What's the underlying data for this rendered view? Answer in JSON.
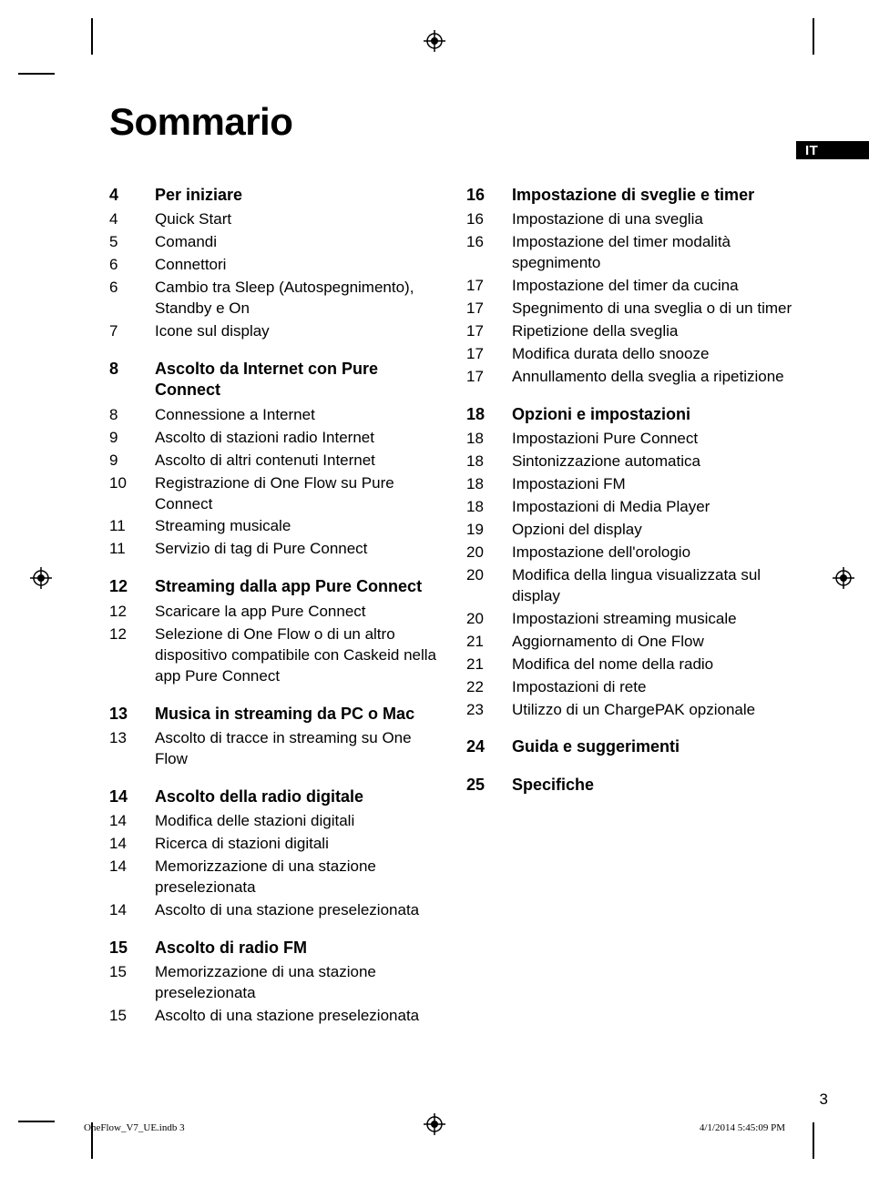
{
  "title": "Sommario",
  "lang_tab": "IT",
  "page_number": "3",
  "footer_left": "OneFlow_V7_UE.indb   3",
  "footer_right": "4/1/2014   5:45:09 PM",
  "columns": [
    {
      "sections": [
        {
          "page": "4",
          "title": "Per iniziare",
          "entries": [
            {
              "page": "4",
              "title": "Quick Start"
            },
            {
              "page": "5",
              "title": "Comandi"
            },
            {
              "page": "6",
              "title": "Connettori"
            },
            {
              "page": "6",
              "title": "Cambio tra Sleep (Autospegnimento), Standby e On"
            },
            {
              "page": "7",
              "title": "Icone sul display"
            }
          ]
        },
        {
          "page": "8",
          "title": "Ascolto da Internet con Pure Connect",
          "entries": [
            {
              "page": "8",
              "title": "Connessione a Internet"
            },
            {
              "page": "9",
              "title": "Ascolto di stazioni radio Internet"
            },
            {
              "page": "9",
              "title": "Ascolto di altri contenuti Internet"
            },
            {
              "page": "10",
              "title": "Registrazione di One Flow su Pure Connect"
            },
            {
              "page": "11",
              "title": "Streaming musicale"
            },
            {
              "page": "11",
              "title": "Servizio di tag di Pure Connect"
            }
          ]
        },
        {
          "page": "12",
          "title": "Streaming dalla app Pure Connect",
          "entries": [
            {
              "page": "12",
              "title": "Scaricare la app Pure Connect"
            },
            {
              "page": "12",
              "title": "Selezione di One Flow o di un altro dispositivo compatibile con Caskeid nella app Pure Connect"
            }
          ]
        },
        {
          "page": "13",
          "title": "Musica in streaming da PC o Mac",
          "entries": [
            {
              "page": "13",
              "title": "Ascolto di tracce in streaming su One Flow"
            }
          ]
        },
        {
          "page": "14",
          "title": "Ascolto della radio digitale",
          "entries": [
            {
              "page": "14",
              "title": "Modifica delle stazioni digitali"
            },
            {
              "page": "14",
              "title": "Ricerca di stazioni digitali"
            },
            {
              "page": "14",
              "title": "Memorizzazione di una stazione preselezionata"
            },
            {
              "page": "14",
              "title": "Ascolto di una stazione preselezionata"
            }
          ]
        },
        {
          "page": "15",
          "title": "Ascolto di radio FM",
          "entries": [
            {
              "page": "15",
              "title": "Memorizzazione di una stazione preselezionata"
            },
            {
              "page": "15",
              "title": "Ascolto di una stazione preselezionata"
            }
          ]
        }
      ]
    },
    {
      "sections": [
        {
          "page": "16",
          "title": "Impostazione di sveglie e timer",
          "entries": [
            {
              "page": "16",
              "title": "Impostazione di una sveglia"
            },
            {
              "page": "16",
              "title": "Impostazione del timer modalità spegnimento"
            },
            {
              "page": "17",
              "title": "Impostazione del timer da cucina"
            },
            {
              "page": "17",
              "title": "Spegnimento di una sveglia o di un timer"
            },
            {
              "page": "17",
              "title": "Ripetizione della sveglia"
            },
            {
              "page": "17",
              "title": "Modifica durata dello snooze"
            },
            {
              "page": "17",
              "title": "Annullamento della sveglia a ripetizione"
            }
          ]
        },
        {
          "page": "18",
          "title": "Opzioni e impostazioni",
          "entries": [
            {
              "page": "18",
              "title": "Impostazioni Pure Connect"
            },
            {
              "page": "18",
              "title": "Sintonizzazione automatica"
            },
            {
              "page": "18",
              "title": "Impostazioni FM"
            },
            {
              "page": "18",
              "title": "Impostazioni di Media Player"
            },
            {
              "page": "19",
              "title": "Opzioni del display"
            },
            {
              "page": "20",
              "title": "Impostazione dell'orologio"
            },
            {
              "page": "20",
              "title": "Modifica della lingua visualizzata sul display"
            },
            {
              "page": "20",
              "title": "Impostazioni streaming musicale"
            },
            {
              "page": "21",
              "title": "Aggiornamento di One Flow"
            },
            {
              "page": "21",
              "title": "Modifica del nome della radio"
            },
            {
              "page": "22",
              "title": "Impostazioni di rete"
            },
            {
              "page": "23",
              "title": "Utilizzo di un ChargePAK opzionale"
            }
          ]
        },
        {
          "page": "24",
          "title": "Guida e suggerimenti",
          "entries": []
        },
        {
          "page": "25",
          "title": "Specifiche",
          "entries": []
        }
      ]
    }
  ]
}
